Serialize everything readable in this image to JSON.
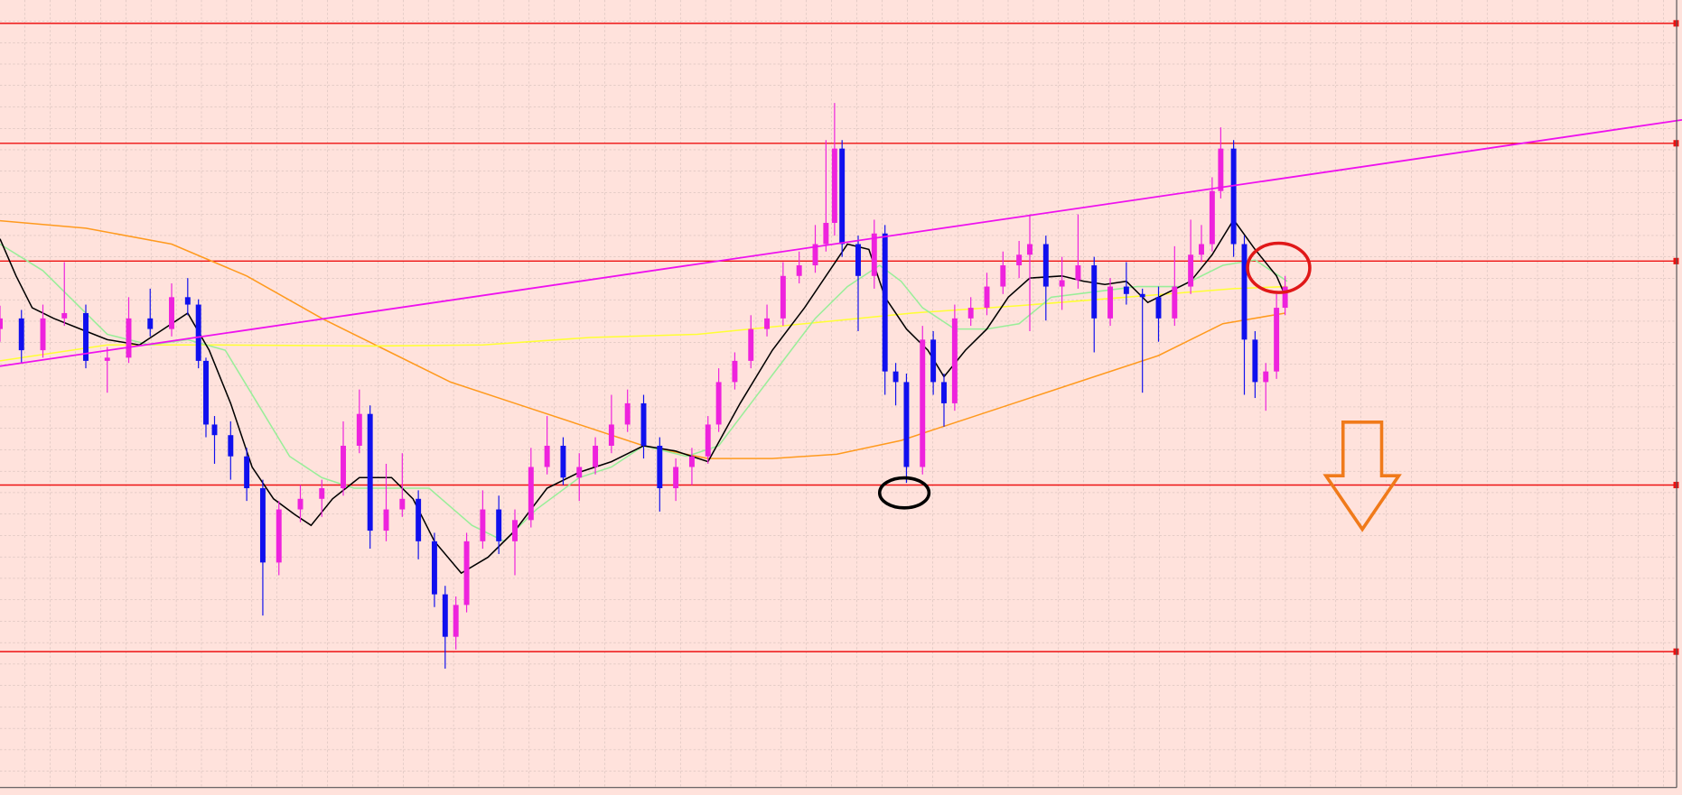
{
  "chart_data": {
    "type": "candlestick",
    "xlim": [
      0,
      1568
    ],
    "ylim": [
      0,
      742
    ],
    "bull_color": "#ee22dd",
    "bear_color": "#1010ee",
    "x": [
      0,
      20,
      40,
      60,
      80,
      100,
      120,
      140,
      160,
      175,
      185,
      192,
      200,
      215,
      230,
      245,
      260,
      280,
      300,
      320,
      335,
      345,
      360,
      375,
      390,
      405,
      415,
      425,
      435,
      450,
      465,
      480,
      495,
      510,
      525,
      540,
      555,
      570,
      585,
      600,
      615,
      630,
      645,
      660,
      670,
      685,
      700,
      715,
      730,
      745,
      760,
      770,
      778,
      785,
      800,
      815,
      825,
      835,
      845,
      860,
      870,
      880,
      890,
      905,
      920,
      935,
      950,
      960,
      975,
      990,
      1005,
      1020,
      1035,
      1050,
      1065,
      1080,
      1095,
      1110,
      1120,
      1130,
      1138,
      1150,
      1160,
      1170,
      1180,
      1190,
      1198
    ],
    "open": [
      432,
      442,
      412,
      442,
      447,
      402,
      405,
      442,
      432,
      462,
      455,
      402,
      342,
      332,
      312,
      282,
      212,
      262,
      272,
      282,
      322,
      352,
      242,
      262,
      272,
      232,
      182,
      142,
      172,
      232,
      262,
      232,
      252,
      302,
      322,
      292,
      302,
      322,
      342,
      362,
      322,
      282,
      302,
      312,
      342,
      382,
      402,
      432,
      442,
      482,
      492,
      512,
      532,
      602,
      512,
      482,
      522,
      392,
      382,
      302,
      422,
      382,
      362,
      442,
      452,
      472,
      492,
      502,
      512,
      472,
      478,
      492,
      442,
      472,
      465,
      462,
      442,
      472,
      502,
      512,
      562,
      602,
      512,
      422,
      382,
      392,
      452
    ],
    "high": [
      454,
      450,
      455,
      495,
      455,
      415,
      462,
      470,
      475,
      480,
      460,
      405,
      350,
      345,
      320,
      290,
      270,
      285,
      290,
      345,
      375,
      360,
      305,
      315,
      280,
      240,
      190,
      180,
      240,
      280,
      275,
      262,
      320,
      350,
      330,
      315,
      330,
      370,
      375,
      370,
      330,
      310,
      320,
      350,
      395,
      410,
      445,
      455,
      495,
      505,
      530,
      610,
      645,
      610,
      520,
      535,
      530,
      400,
      390,
      435,
      430,
      390,
      455,
      462,
      485,
      505,
      515,
      540,
      520,
      500,
      540,
      500,
      480,
      495,
      470,
      472,
      510,
      535,
      530,
      575,
      622,
      610,
      520,
      430,
      400,
      465,
      482
    ],
    "low": [
      420,
      400,
      405,
      435,
      395,
      372,
      400,
      425,
      425,
      445,
      395,
      330,
      305,
      290,
      270,
      162,
      200,
      250,
      255,
      275,
      315,
      225,
      232,
      255,
      215,
      170,
      112,
      130,
      165,
      225,
      220,
      200,
      245,
      295,
      285,
      270,
      295,
      315,
      335,
      310,
      260,
      270,
      285,
      305,
      335,
      375,
      395,
      425,
      435,
      475,
      485,
      505,
      520,
      500,
      430,
      470,
      370,
      360,
      287,
      295,
      370,
      340,
      355,
      435,
      445,
      465,
      480,
      430,
      440,
      450,
      470,
      410,
      435,
      455,
      372,
      420,
      435,
      465,
      495,
      505,
      555,
      500,
      370,
      367,
      355,
      385,
      445
    ],
    "close": [
      442,
      412,
      442,
      447,
      402,
      405,
      442,
      432,
      462,
      455,
      402,
      342,
      332,
      312,
      282,
      212,
      262,
      272,
      282,
      322,
      352,
      242,
      262,
      272,
      232,
      182,
      142,
      172,
      232,
      262,
      232,
      252,
      302,
      322,
      292,
      302,
      322,
      342,
      362,
      322,
      282,
      302,
      312,
      342,
      382,
      402,
      432,
      442,
      482,
      492,
      512,
      532,
      602,
      512,
      482,
      522,
      392,
      382,
      302,
      422,
      382,
      362,
      442,
      452,
      472,
      492,
      502,
      512,
      472,
      478,
      492,
      442,
      472,
      465,
      462,
      442,
      472,
      502,
      512,
      562,
      602,
      512,
      422,
      382,
      392,
      452,
      472
    ],
    "lines": [
      {
        "color": "#ff9a1e",
        "x": [
          0,
          80,
          160,
          230,
          300,
          360,
          420,
          480,
          540,
          600,
          660,
          720,
          780,
          840,
          900,
          960,
          1020,
          1080,
          1140,
          1198
        ],
        "values": [
          534,
          527,
          512,
          482,
          442,
          412,
          382,
          362,
          342,
          322,
          310,
          310,
          314,
          327,
          347,
          367,
          387,
          407,
          437,
          447
        ]
      },
      {
        "color": "#ffff33",
        "x": [
          0,
          100,
          200,
          350,
          450,
          550,
          650,
          750,
          850,
          950,
          1050,
          1150,
          1200
        ],
        "values": [
          402,
          417,
          417,
          416,
          417,
          424,
          427,
          437,
          447,
          454,
          462,
          470,
          472
        ]
      },
      {
        "color": "#99ee99",
        "x": [
          0,
          40,
          70,
          100,
          140,
          175,
          210,
          240,
          270,
          300,
          330,
          360,
          400,
          440,
          470,
          500,
          540,
          570,
          600,
          640,
          670,
          700,
          730,
          760,
          790,
          820,
          840,
          860,
          890,
          920,
          950,
          980,
          1020,
          1060,
          1100,
          1140,
          1170,
          1200
        ],
        "values": [
          512,
          487,
          457,
          427,
          417,
          422,
          412,
          362,
          312,
          292,
          282,
          282,
          282,
          247,
          232,
          262,
          292,
          302,
          322,
          312,
          322,
          362,
          402,
          442,
          472,
          492,
          477,
          452,
          432,
          432,
          437,
          462,
          467,
          472,
          472,
          492,
          497,
          477
        ]
      },
      {
        "color": "#000000",
        "x": [
          0,
          15,
          30,
          50,
          75,
          100,
          130,
          160,
          175,
          195,
          215,
          235,
          255,
          275,
          290,
          310,
          335,
          365,
          385,
          405,
          430,
          455,
          480,
          510,
          540,
          570,
          600,
          630,
          660,
          690,
          720,
          750,
          770,
          790,
          810,
          825,
          845,
          865,
          880,
          900,
          920,
          940,
          960,
          990,
          1010,
          1030,
          1050,
          1070,
          1090,
          1110,
          1130,
          1150,
          1170,
          1190,
          1200
        ],
        "values": [
          517,
          482,
          452,
          442,
          432,
          422,
          417,
          437,
          447,
          412,
          362,
          302,
          272,
          257,
          247,
          272,
          292,
          292,
          272,
          232,
          202,
          217,
          242,
          282,
          297,
          307,
          322,
          317,
          307,
          362,
          412,
          452,
          482,
          512,
          507,
          462,
          432,
          412,
          387,
          412,
          432,
          462,
          480,
          482,
          477,
          474,
          477,
          457,
          467,
          477,
          502,
          535,
          507,
          482,
          459
        ]
      }
    ],
    "trendline": {
      "color": "#ee11ee",
      "x": [
        0,
        1568
      ],
      "values": [
        397,
        629
      ]
    },
    "hlines": {
      "color": "#ee1111",
      "values": [
        720,
        607,
        496,
        285,
        128
      ]
    }
  }
}
